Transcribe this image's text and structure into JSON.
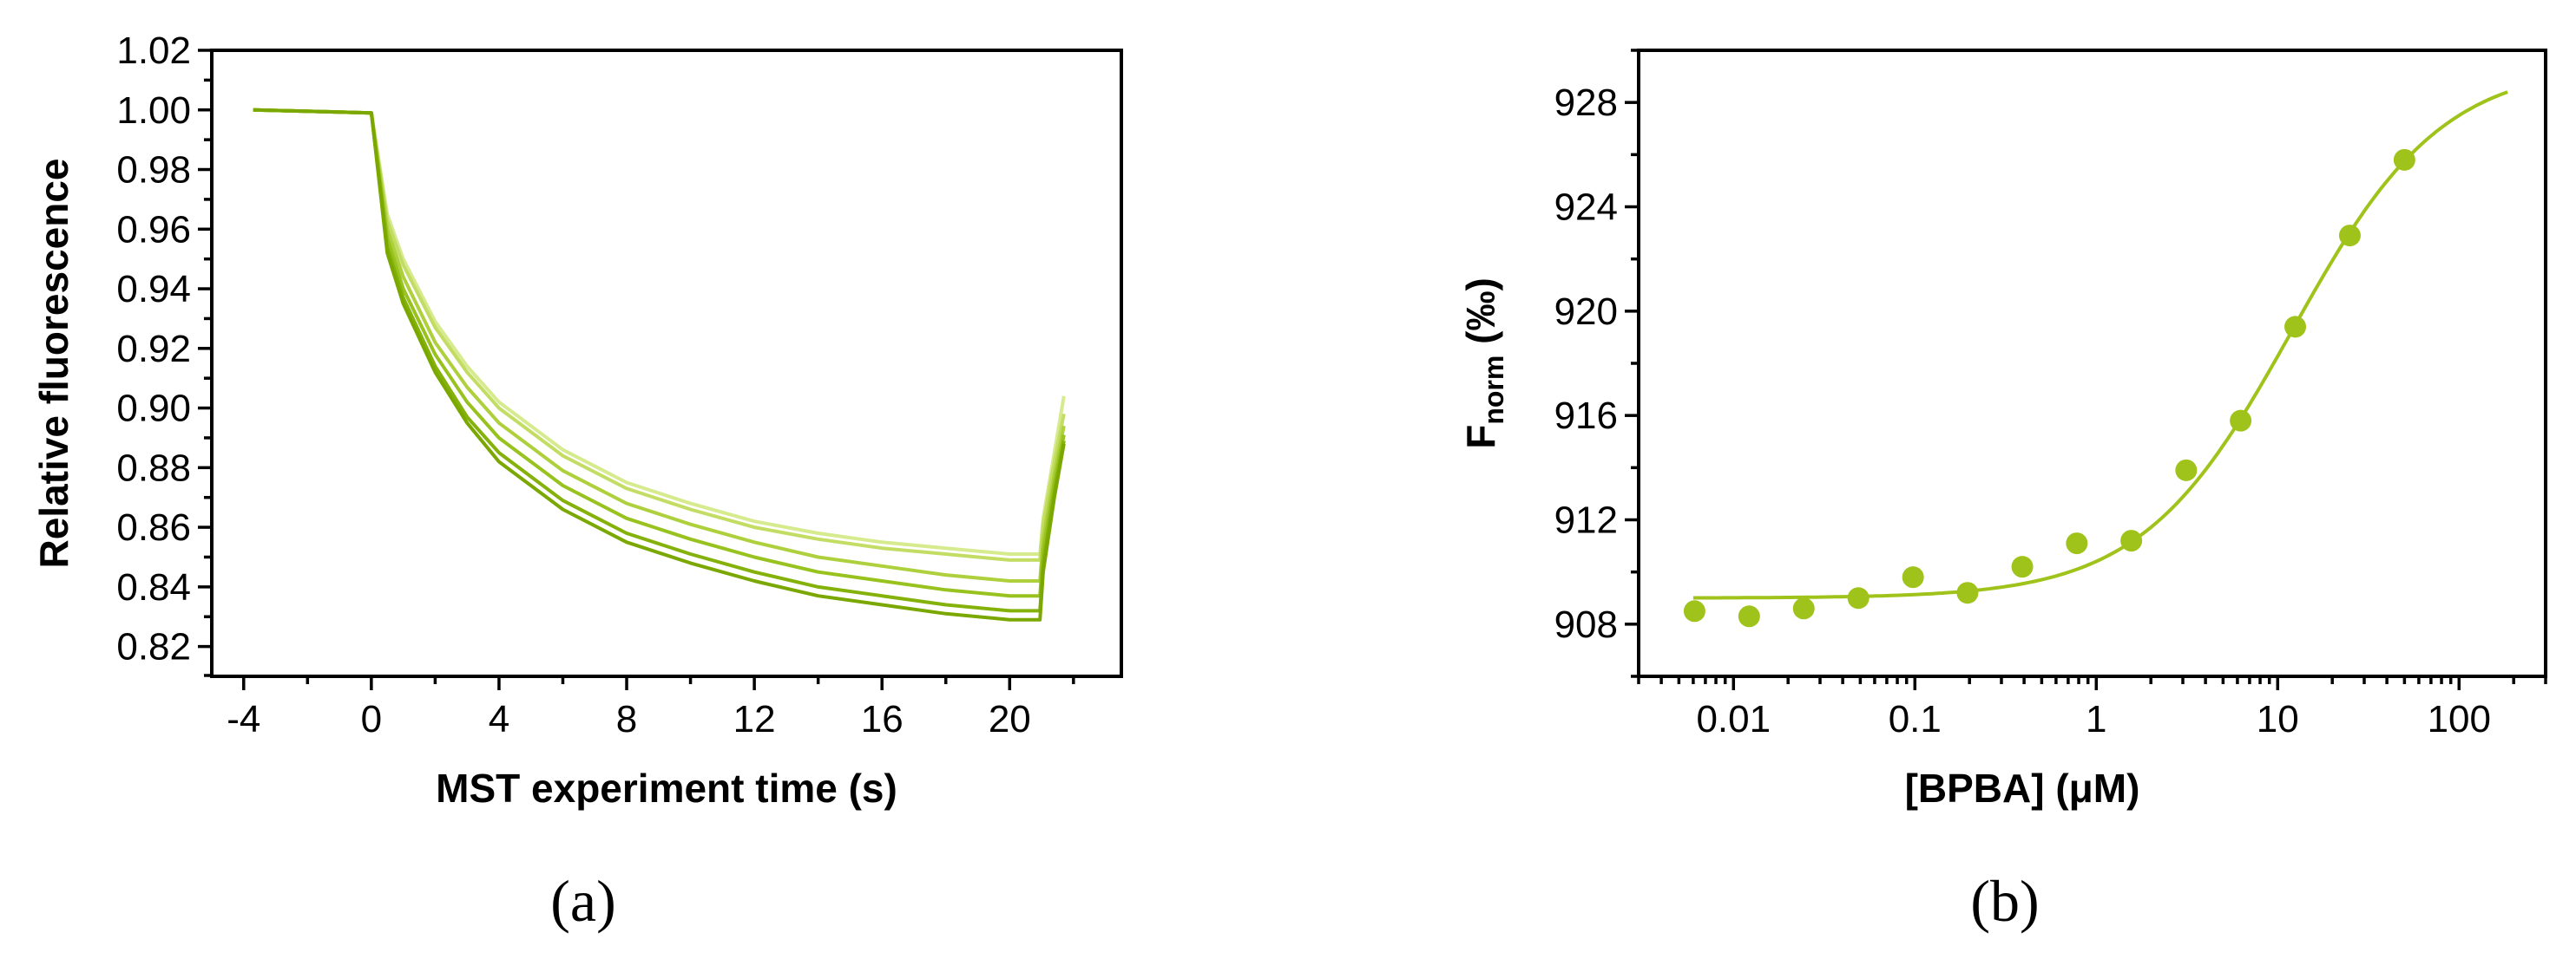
{
  "chart_data": [
    {
      "panel_label": "(a)",
      "type": "line",
      "xlabel": "MST experiment time (s)",
      "ylabel": "Relative fluorescence",
      "xlim": [
        -5,
        23.5
      ],
      "ylim": [
        0.81,
        1.02
      ],
      "xticks": [
        -4,
        0,
        4,
        8,
        12,
        16,
        20
      ],
      "xtick_labels": [
        "-4",
        "0",
        "4",
        "8",
        "12",
        "16",
        "20"
      ],
      "yticks": [
        0.82,
        0.84,
        0.86,
        0.88,
        0.9,
        0.92,
        0.94,
        0.96,
        0.98,
        1.0,
        1.02
      ],
      "ytick_labels": [
        "0.82",
        "0.84",
        "0.86",
        "0.88",
        "0.90",
        "0.92",
        "0.94",
        "0.96",
        "0.98",
        "1.00",
        "1.02"
      ],
      "grid": false,
      "legend": "none",
      "time_points": [
        -3.7,
        0.0,
        0.5,
        1,
        2,
        3,
        4,
        6,
        8,
        10,
        12,
        14,
        16,
        18,
        20,
        20.95,
        21.05,
        21.4,
        21.7
      ],
      "series": [
        {
          "color": "#7aa800",
          "values": [
            1.0,
            0.999,
            0.952,
            0.935,
            0.912,
            0.895,
            0.882,
            0.866,
            0.855,
            0.848,
            0.842,
            0.837,
            0.834,
            0.831,
            0.829,
            0.829,
            0.845,
            0.87,
            0.888
          ]
        },
        {
          "color": "#84b20a",
          "values": [
            1.0,
            0.999,
            0.954,
            0.937,
            0.914,
            0.897,
            0.885,
            0.869,
            0.858,
            0.851,
            0.845,
            0.84,
            0.837,
            0.834,
            0.832,
            0.832,
            0.848,
            0.872,
            0.889
          ]
        },
        {
          "color": "#98c21e",
          "values": [
            1.0,
            0.999,
            0.957,
            0.94,
            0.918,
            0.902,
            0.89,
            0.874,
            0.863,
            0.856,
            0.85,
            0.845,
            0.842,
            0.839,
            0.837,
            0.837,
            0.852,
            0.875,
            0.891
          ]
        },
        {
          "color": "#aed03c",
          "values": [
            1.0,
            0.999,
            0.96,
            0.944,
            0.922,
            0.907,
            0.895,
            0.879,
            0.868,
            0.861,
            0.855,
            0.85,
            0.847,
            0.844,
            0.842,
            0.842,
            0.856,
            0.878,
            0.894
          ]
        },
        {
          "color": "#c3dd64",
          "values": [
            1.0,
            0.999,
            0.963,
            0.948,
            0.927,
            0.912,
            0.9,
            0.884,
            0.873,
            0.866,
            0.86,
            0.856,
            0.853,
            0.851,
            0.849,
            0.849,
            0.861,
            0.882,
            0.898
          ]
        },
        {
          "color": "#d6ea8e",
          "values": [
            1.0,
            0.999,
            0.965,
            0.95,
            0.929,
            0.914,
            0.902,
            0.886,
            0.875,
            0.868,
            0.862,
            0.858,
            0.855,
            0.853,
            0.851,
            0.851,
            0.863,
            0.885,
            0.904
          ]
        }
      ]
    },
    {
      "panel_label": "(b)",
      "type": "scatter",
      "xlabel": "[BPBA] (μM)",
      "ylabel_main": "F",
      "ylabel_sub": "norm",
      "ylabel_unit": " (‰)",
      "xscale": "log",
      "xlim": [
        0.003,
        300
      ],
      "ylim": [
        906,
        930
      ],
      "xticks": [
        0.01,
        0.1,
        1,
        10,
        100
      ],
      "xtick_labels": [
        "0.01",
        "0.1",
        "1",
        "10",
        "100"
      ],
      "yticks": [
        908,
        912,
        916,
        920,
        924,
        928
      ],
      "ytick_labels": [
        "908",
        "912",
        "916",
        "920",
        "924",
        "928"
      ],
      "grid": false,
      "legend": "none",
      "color": "#9fc31a",
      "points": {
        "x": [
          0.0061,
          0.0122,
          0.0244,
          0.0488,
          0.0977,
          0.195,
          0.391,
          0.781,
          1.56,
          3.13,
          6.25,
          12.5,
          25,
          50
        ],
        "y": [
          908.5,
          908.3,
          908.6,
          909.0,
          909.8,
          909.2,
          910.2,
          911.1,
          911.2,
          913.9,
          915.8,
          919.4,
          922.9,
          925.8
        ]
      },
      "fit": {
        "model": "sigmoid",
        "x_range": [
          0.006,
          185
        ],
        "bottom": 909.0,
        "top": 929.5,
        "ec50": 12,
        "hill": 1.05
      }
    }
  ]
}
